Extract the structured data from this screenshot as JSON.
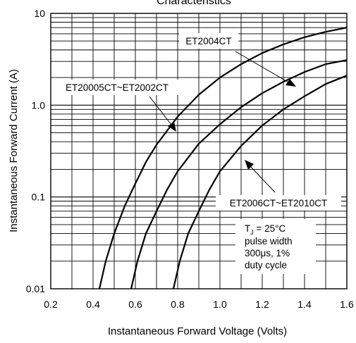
{
  "chart_data": {
    "type": "line",
    "title": "Characteristics",
    "xlabel": "Instantaneous Forward Voltage (Volts)",
    "ylabel": "Instantaneous Forward Current (A)",
    "xlim": [
      0.2,
      1.6
    ],
    "ylim": [
      0.01,
      10
    ],
    "yscale": "log",
    "x_ticks": [
      "0.2",
      "0.4",
      "0.6",
      "0.8",
      "1.0",
      "1.2",
      "1.4",
      "1.6"
    ],
    "y_ticks": [
      {
        "value": 10,
        "label": "10"
      },
      {
        "value": 1,
        "label": "1.0"
      },
      {
        "value": 0.1,
        "label": "0.1"
      },
      {
        "value": 0.01,
        "label": "0.01"
      }
    ],
    "grid": true,
    "series": [
      {
        "name": "ET20005CT~ET2002CT",
        "points": [
          [
            0.43,
            0.01
          ],
          [
            0.46,
            0.02
          ],
          [
            0.5,
            0.04
          ],
          [
            0.55,
            0.08
          ],
          [
            0.6,
            0.14
          ],
          [
            0.65,
            0.24
          ],
          [
            0.7,
            0.37
          ],
          [
            0.8,
            0.75
          ],
          [
            0.9,
            1.3
          ],
          [
            1.0,
            2.0
          ],
          [
            1.1,
            2.8
          ],
          [
            1.2,
            3.7
          ],
          [
            1.3,
            4.6
          ],
          [
            1.4,
            5.5
          ],
          [
            1.5,
            6.3
          ],
          [
            1.6,
            7.0
          ]
        ]
      },
      {
        "name": "ET2004CT",
        "points": [
          [
            0.58,
            0.01
          ],
          [
            0.61,
            0.02
          ],
          [
            0.65,
            0.04
          ],
          [
            0.7,
            0.07
          ],
          [
            0.75,
            0.12
          ],
          [
            0.8,
            0.19
          ],
          [
            0.9,
            0.38
          ],
          [
            1.0,
            0.62
          ],
          [
            1.1,
            0.95
          ],
          [
            1.2,
            1.35
          ],
          [
            1.3,
            1.8
          ],
          [
            1.4,
            2.3
          ],
          [
            1.5,
            2.8
          ],
          [
            1.6,
            3.1
          ]
        ]
      },
      {
        "name": "ET2006CT~ET2010CT",
        "points": [
          [
            0.78,
            0.01
          ],
          [
            0.81,
            0.02
          ],
          [
            0.85,
            0.04
          ],
          [
            0.9,
            0.07
          ],
          [
            0.95,
            0.12
          ],
          [
            1.0,
            0.19
          ],
          [
            1.1,
            0.36
          ],
          [
            1.2,
            0.6
          ],
          [
            1.3,
            0.9
          ],
          [
            1.4,
            1.25
          ],
          [
            1.5,
            1.7
          ],
          [
            1.6,
            2.1
          ]
        ]
      }
    ],
    "annotations": {
      "label_a": "ET20005CT~ET2002CT",
      "label_b": "ET2004CT",
      "label_c": "ET2006CT~ET2010CT",
      "condition_line1_prefix": "T",
      "condition_line1_sub": "J",
      "condition_line1_suffix": " = 25°C",
      "condition_line2": "pulse width",
      "condition_line3": "300μs, 1%",
      "condition_line4": "duty cycle"
    }
  }
}
